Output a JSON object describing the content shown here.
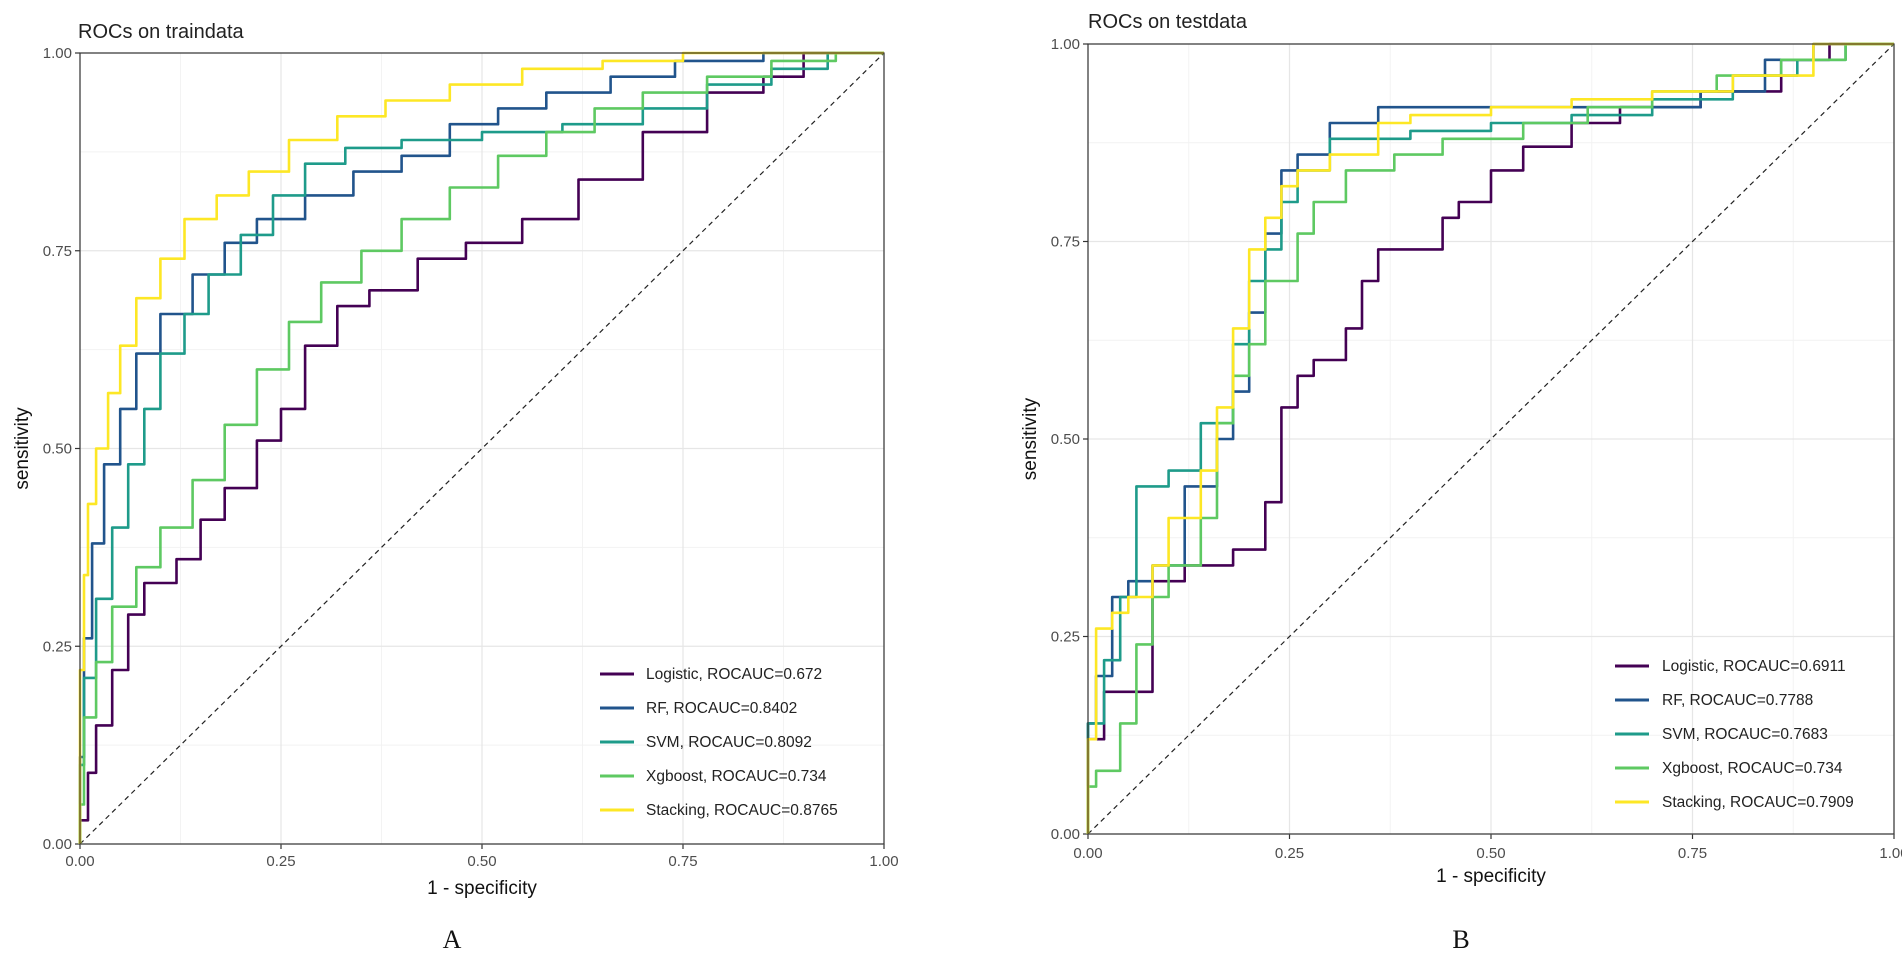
{
  "chart_data": [
    {
      "type": "line",
      "title": "ROCs on traindata",
      "xlabel": "1 - specificity",
      "ylabel": "sensitivity",
      "xlim": [
        0,
        1
      ],
      "ylim": [
        0,
        1
      ],
      "x_ticks": [
        "0.00",
        "0.25",
        "0.50",
        "0.75",
        "1.00"
      ],
      "y_ticks": [
        "0.00",
        "0.25",
        "0.50",
        "0.75",
        "1.00"
      ],
      "diagonal_reference": true,
      "legend_position": "bottom-right",
      "panel_label": "A",
      "series": [
        {
          "name": "Logistic, ROCAUC=0.672",
          "color": "#440154",
          "points": [
            [
              0,
              0
            ],
            [
              0.01,
              0.03
            ],
            [
              0.02,
              0.09
            ],
            [
              0.04,
              0.15
            ],
            [
              0.06,
              0.22
            ],
            [
              0.08,
              0.29
            ],
            [
              0.12,
              0.33
            ],
            [
              0.15,
              0.36
            ],
            [
              0.18,
              0.41
            ],
            [
              0.22,
              0.45
            ],
            [
              0.25,
              0.51
            ],
            [
              0.28,
              0.55
            ],
            [
              0.32,
              0.63
            ],
            [
              0.36,
              0.68
            ],
            [
              0.42,
              0.7
            ],
            [
              0.48,
              0.74
            ],
            [
              0.55,
              0.76
            ],
            [
              0.62,
              0.79
            ],
            [
              0.7,
              0.84
            ],
            [
              0.78,
              0.9
            ],
            [
              0.85,
              0.95
            ],
            [
              0.9,
              0.97
            ],
            [
              1,
              1
            ]
          ]
        },
        {
          "name": "RF, ROCAUC=0.8402",
          "color": "#21548C",
          "points": [
            [
              0,
              0
            ],
            [
              0.005,
              0.11
            ],
            [
              0.015,
              0.26
            ],
            [
              0.03,
              0.38
            ],
            [
              0.05,
              0.48
            ],
            [
              0.07,
              0.55
            ],
            [
              0.1,
              0.62
            ],
            [
              0.14,
              0.67
            ],
            [
              0.18,
              0.72
            ],
            [
              0.22,
              0.76
            ],
            [
              0.28,
              0.79
            ],
            [
              0.34,
              0.82
            ],
            [
              0.4,
              0.85
            ],
            [
              0.46,
              0.87
            ],
            [
              0.52,
              0.91
            ],
            [
              0.58,
              0.93
            ],
            [
              0.66,
              0.95
            ],
            [
              0.74,
              0.97
            ],
            [
              0.85,
              0.99
            ],
            [
              0.93,
              1.0
            ],
            [
              1,
              1
            ]
          ]
        },
        {
          "name": "SVM, ROCAUC=0.8092",
          "color": "#1E9B8A",
          "points": [
            [
              0,
              0
            ],
            [
              0.005,
              0.1
            ],
            [
              0.02,
              0.21
            ],
            [
              0.04,
              0.31
            ],
            [
              0.06,
              0.4
            ],
            [
              0.08,
              0.48
            ],
            [
              0.1,
              0.55
            ],
            [
              0.13,
              0.62
            ],
            [
              0.16,
              0.67
            ],
            [
              0.2,
              0.72
            ],
            [
              0.24,
              0.77
            ],
            [
              0.28,
              0.82
            ],
            [
              0.33,
              0.86
            ],
            [
              0.4,
              0.88
            ],
            [
              0.5,
              0.89
            ],
            [
              0.6,
              0.9
            ],
            [
              0.7,
              0.91
            ],
            [
              0.78,
              0.93
            ],
            [
              0.86,
              0.96
            ],
            [
              0.93,
              0.98
            ],
            [
              1,
              1
            ]
          ]
        },
        {
          "name": "Xgboost, ROCAUC=0.734",
          "color": "#5EC962",
          "points": [
            [
              0,
              0
            ],
            [
              0.005,
              0.05
            ],
            [
              0.02,
              0.16
            ],
            [
              0.04,
              0.23
            ],
            [
              0.07,
              0.3
            ],
            [
              0.1,
              0.35
            ],
            [
              0.14,
              0.4
            ],
            [
              0.18,
              0.46
            ],
            [
              0.22,
              0.53
            ],
            [
              0.26,
              0.6
            ],
            [
              0.3,
              0.66
            ],
            [
              0.35,
              0.71
            ],
            [
              0.4,
              0.75
            ],
            [
              0.46,
              0.79
            ],
            [
              0.52,
              0.83
            ],
            [
              0.58,
              0.87
            ],
            [
              0.64,
              0.9
            ],
            [
              0.7,
              0.93
            ],
            [
              0.78,
              0.95
            ],
            [
              0.86,
              0.97
            ],
            [
              0.94,
              0.99
            ],
            [
              1,
              1
            ]
          ]
        },
        {
          "name": "Stacking, ROCAUC=0.8765",
          "color": "#FDE725",
          "points": [
            [
              0,
              0
            ],
            [
              0.005,
              0.22
            ],
            [
              0.01,
              0.34
            ],
            [
              0.02,
              0.43
            ],
            [
              0.035,
              0.5
            ],
            [
              0.05,
              0.57
            ],
            [
              0.07,
              0.63
            ],
            [
              0.1,
              0.69
            ],
            [
              0.13,
              0.74
            ],
            [
              0.17,
              0.79
            ],
            [
              0.21,
              0.82
            ],
            [
              0.26,
              0.85
            ],
            [
              0.32,
              0.89
            ],
            [
              0.38,
              0.92
            ],
            [
              0.46,
              0.94
            ],
            [
              0.55,
              0.96
            ],
            [
              0.65,
              0.98
            ],
            [
              0.75,
              0.99
            ],
            [
              0.88,
              1.0
            ],
            [
              1,
              1
            ]
          ]
        }
      ]
    },
    {
      "type": "line",
      "title": "ROCs on testdata",
      "xlabel": "1 - specificity",
      "ylabel": "sensitivity",
      "xlim": [
        0,
        1
      ],
      "ylim": [
        0,
        1
      ],
      "x_ticks": [
        "0.00",
        "0.25",
        "0.50",
        "0.75",
        "1.00"
      ],
      "y_ticks": [
        "0.00",
        "0.25",
        "0.50",
        "0.75",
        "1.00"
      ],
      "diagonal_reference": true,
      "legend_position": "bottom-right",
      "panel_label": "B",
      "series": [
        {
          "name": "Logistic, ROCAUC=0.6911",
          "color": "#440154",
          "points": [
            [
              0,
              0
            ],
            [
              0.02,
              0.12
            ],
            [
              0.04,
              0.18
            ],
            [
              0.08,
              0.18
            ],
            [
              0.08,
              0.28
            ],
            [
              0.12,
              0.32
            ],
            [
              0.18,
              0.34
            ],
            [
              0.22,
              0.36
            ],
            [
              0.24,
              0.42
            ],
            [
              0.26,
              0.54
            ],
            [
              0.28,
              0.58
            ],
            [
              0.32,
              0.6
            ],
            [
              0.34,
              0.64
            ],
            [
              0.36,
              0.7
            ],
            [
              0.38,
              0.74
            ],
            [
              0.44,
              0.74
            ],
            [
              0.46,
              0.78
            ],
            [
              0.5,
              0.8
            ],
            [
              0.54,
              0.84
            ],
            [
              0.6,
              0.87
            ],
            [
              0.66,
              0.9
            ],
            [
              0.76,
              0.92
            ],
            [
              0.86,
              0.94
            ],
            [
              0.92,
              0.98
            ],
            [
              0.96,
              1.0
            ],
            [
              1,
              1
            ]
          ]
        },
        {
          "name": "RF, ROCAUC=0.7788",
          "color": "#21548C",
          "points": [
            [
              0,
              0
            ],
            [
              0.01,
              0.14
            ],
            [
              0.03,
              0.2
            ],
            [
              0.05,
              0.3
            ],
            [
              0.08,
              0.32
            ],
            [
              0.12,
              0.34
            ],
            [
              0.16,
              0.44
            ],
            [
              0.18,
              0.5
            ],
            [
              0.2,
              0.56
            ],
            [
              0.22,
              0.66
            ],
            [
              0.24,
              0.76
            ],
            [
              0.26,
              0.84
            ],
            [
              0.3,
              0.86
            ],
            [
              0.36,
              0.9
            ],
            [
              0.42,
              0.92
            ],
            [
              0.54,
              0.92
            ],
            [
              0.64,
              0.92
            ],
            [
              0.76,
              0.92
            ],
            [
              0.84,
              0.94
            ],
            [
              0.9,
              0.98
            ],
            [
              1,
              1
            ]
          ]
        },
        {
          "name": "SVM, ROCAUC=0.7683",
          "color": "#1E9B8A",
          "points": [
            [
              0,
              0
            ],
            [
              0.02,
              0.14
            ],
            [
              0.04,
              0.22
            ],
            [
              0.06,
              0.3
            ],
            [
              0.1,
              0.44
            ],
            [
              0.14,
              0.46
            ],
            [
              0.18,
              0.52
            ],
            [
              0.2,
              0.62
            ],
            [
              0.22,
              0.7
            ],
            [
              0.24,
              0.74
            ],
            [
              0.26,
              0.8
            ],
            [
              0.3,
              0.84
            ],
            [
              0.34,
              0.88
            ],
            [
              0.4,
              0.88
            ],
            [
              0.5,
              0.89
            ],
            [
              0.6,
              0.9
            ],
            [
              0.7,
              0.91
            ],
            [
              0.8,
              0.93
            ],
            [
              0.88,
              0.96
            ],
            [
              0.94,
              0.98
            ],
            [
              1,
              1
            ]
          ]
        },
        {
          "name": "Xgboost, ROCAUC=0.734",
          "color": "#5EC962",
          "points": [
            [
              0,
              0
            ],
            [
              0.01,
              0.06
            ],
            [
              0.04,
              0.08
            ],
            [
              0.06,
              0.14
            ],
            [
              0.08,
              0.24
            ],
            [
              0.1,
              0.3
            ],
            [
              0.14,
              0.34
            ],
            [
              0.16,
              0.4
            ],
            [
              0.18,
              0.52
            ],
            [
              0.2,
              0.58
            ],
            [
              0.22,
              0.62
            ],
            [
              0.26,
              0.7
            ],
            [
              0.28,
              0.76
            ],
            [
              0.32,
              0.8
            ],
            [
              0.38,
              0.84
            ],
            [
              0.44,
              0.86
            ],
            [
              0.54,
              0.88
            ],
            [
              0.62,
              0.9
            ],
            [
              0.7,
              0.92
            ],
            [
              0.78,
              0.94
            ],
            [
              0.86,
              0.96
            ],
            [
              0.94,
              0.98
            ],
            [
              1,
              1
            ]
          ]
        },
        {
          "name": "Stacking, ROCAUC=0.7909",
          "color": "#FDE725",
          "points": [
            [
              0,
              0
            ],
            [
              0.01,
              0.12
            ],
            [
              0.03,
              0.26
            ],
            [
              0.05,
              0.28
            ],
            [
              0.08,
              0.3
            ],
            [
              0.1,
              0.34
            ],
            [
              0.14,
              0.4
            ],
            [
              0.16,
              0.46
            ],
            [
              0.18,
              0.54
            ],
            [
              0.2,
              0.64
            ],
            [
              0.22,
              0.74
            ],
            [
              0.24,
              0.78
            ],
            [
              0.26,
              0.82
            ],
            [
              0.3,
              0.84
            ],
            [
              0.36,
              0.86
            ],
            [
              0.4,
              0.9
            ],
            [
              0.5,
              0.91
            ],
            [
              0.6,
              0.92
            ],
            [
              0.7,
              0.93
            ],
            [
              0.8,
              0.94
            ],
            [
              0.9,
              0.96
            ],
            [
              1,
              1
            ]
          ]
        }
      ]
    }
  ]
}
